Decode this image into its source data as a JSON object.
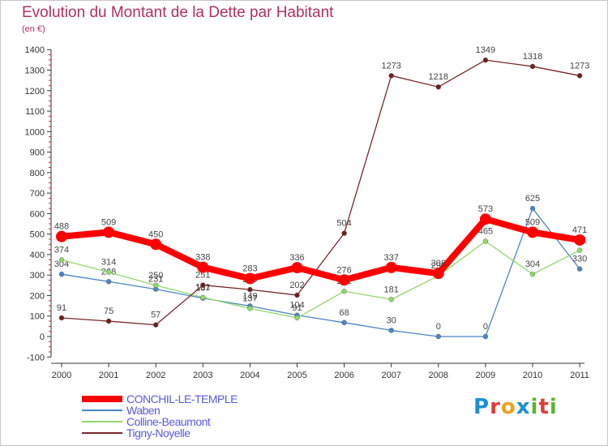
{
  "title": "Evolution du Montant de la Dette par Habitant",
  "unit": "(en €)",
  "logo": {
    "text": "Proxiti",
    "colors": [
      "#1e8fd6",
      "#e03c3c",
      "#f0a020",
      "#1e8fd6",
      "#5cb531",
      "#e03c3c",
      "#5cb531"
    ]
  },
  "chart_data": {
    "type": "line",
    "title": "Evolution du Montant de la Dette par Habitant",
    "ylabel": "(en €)",
    "x": [
      "2000",
      "2001",
      "2002",
      "2003",
      "2004",
      "2005",
      "2006",
      "2007",
      "2008",
      "2009",
      "2010",
      "2011"
    ],
    "ylim": [
      -100,
      1400
    ],
    "yticks": [
      -100,
      0,
      100,
      200,
      300,
      400,
      500,
      600,
      700,
      800,
      900,
      1000,
      1100,
      1200,
      1300,
      1400
    ],
    "grid": false,
    "legend": "bottom-left",
    "series": [
      {
        "name": "CONCHIL-LE-TEMPLE",
        "color": "#ff0000",
        "values": [
          488,
          509,
          450,
          338,
          283,
          336,
          276,
          337,
          308,
          573,
          509,
          471
        ]
      },
      {
        "name": "Waben",
        "color": "#4a86c5",
        "values": [
          304,
          268,
          231,
          187,
          149,
          104,
          68,
          30,
          0,
          0,
          625,
          330
        ]
      },
      {
        "name": "Colline-Beaumont",
        "color": "#8fd96a",
        "values": [
          374,
          314,
          250,
          191,
          137,
          91,
          221,
          181,
          296,
          465,
          304,
          421
        ]
      },
      {
        "name": "Tigny-Noyelle",
        "color": "#7a2828",
        "values": [
          91,
          75,
          57,
          251,
          229,
          202,
          504,
          1273,
          1218,
          1349,
          1318,
          1273
        ]
      }
    ]
  }
}
